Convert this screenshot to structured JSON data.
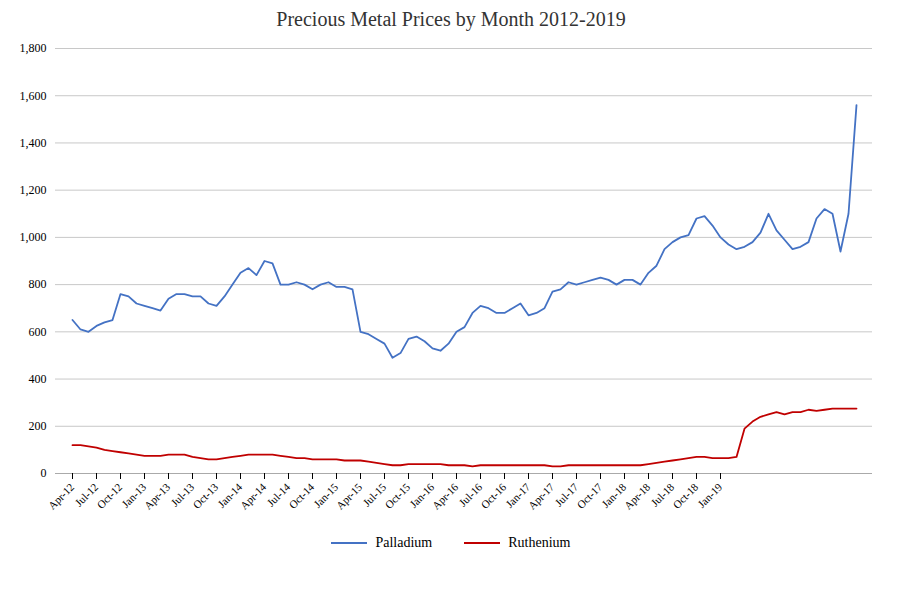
{
  "chart_data": {
    "type": "line",
    "title": "Precious Metal Prices by Month 2012-2019",
    "categories": [
      "Apr-12",
      null,
      null,
      "Jul-12",
      null,
      null,
      "Oct-12",
      null,
      null,
      "Jan-13",
      null,
      null,
      "Apr-13",
      null,
      null,
      "Jul-13",
      null,
      null,
      "Oct-13",
      null,
      null,
      "Jan-14",
      null,
      null,
      "Apr-14",
      null,
      null,
      "Jul-14",
      null,
      null,
      "Oct-14",
      null,
      null,
      "Jan-15",
      null,
      null,
      "Apr-15",
      null,
      null,
      "Jul-15",
      null,
      null,
      "Oct-15",
      null,
      null,
      "Jan-16",
      null,
      null,
      "Apr-16",
      null,
      null,
      "Jul-16",
      null,
      null,
      "Oct-16",
      null,
      null,
      "Jan-17",
      null,
      null,
      "Apr-17",
      null,
      null,
      "Jul-17",
      null,
      null,
      "Oct-17",
      null,
      null,
      "Jan-18",
      null,
      null,
      "Apr-18",
      null,
      null,
      "Jul-18",
      null,
      null,
      "Oct-18",
      null,
      null,
      "Jan-19",
      null,
      null,
      null,
      null,
      null,
      null,
      null,
      null,
      null,
      null,
      null,
      null,
      null,
      null,
      null,
      null,
      null
    ],
    "series": [
      {
        "name": "Palladium",
        "color": "#4472C4",
        "values": [
          650,
          610,
          600,
          625,
          640,
          650,
          760,
          750,
          720,
          710,
          700,
          690,
          740,
          760,
          760,
          750,
          750,
          720,
          710,
          750,
          800,
          850,
          870,
          840,
          900,
          890,
          800,
          800,
          810,
          800,
          780,
          800,
          810,
          790,
          790,
          780,
          600,
          590,
          570,
          550,
          490,
          510,
          570,
          580,
          560,
          530,
          520,
          550,
          600,
          620,
          680,
          710,
          700,
          680,
          680,
          700,
          720,
          670,
          680,
          700,
          770,
          780,
          810,
          800,
          810,
          820,
          830,
          820,
          800,
          820,
          820,
          800,
          850,
          880,
          950,
          980,
          1000,
          1010,
          1080,
          1090,
          1050,
          1000,
          970,
          950,
          960,
          980,
          1020,
          1100,
          1030,
          990,
          950,
          960,
          980,
          1080,
          1120,
          1100,
          940,
          1100,
          1560
        ]
      },
      {
        "name": "Ruthenium",
        "color": "#C00000",
        "values": [
          120,
          120,
          115,
          110,
          100,
          95,
          90,
          85,
          80,
          75,
          75,
          75,
          80,
          80,
          80,
          70,
          65,
          60,
          60,
          65,
          70,
          75,
          80,
          80,
          80,
          80,
          75,
          70,
          65,
          65,
          60,
          60,
          60,
          60,
          55,
          55,
          55,
          50,
          45,
          40,
          35,
          35,
          40,
          40,
          40,
          40,
          40,
          35,
          35,
          35,
          30,
          35,
          35,
          35,
          35,
          35,
          35,
          35,
          35,
          35,
          30,
          30,
          35,
          35,
          35,
          35,
          35,
          35,
          35,
          35,
          35,
          35,
          40,
          45,
          50,
          55,
          60,
          65,
          70,
          70,
          65,
          65,
          65,
          70,
          190,
          220,
          240,
          250,
          260,
          250,
          260,
          260,
          270,
          265,
          270,
          275,
          275,
          275,
          275
        ]
      }
    ],
    "ylim": [
      0,
      1800
    ],
    "yticks": [
      0,
      200,
      400,
      600,
      800,
      1000,
      1200,
      1400,
      1600,
      1800
    ],
    "grid": true,
    "legend": "bottom"
  }
}
